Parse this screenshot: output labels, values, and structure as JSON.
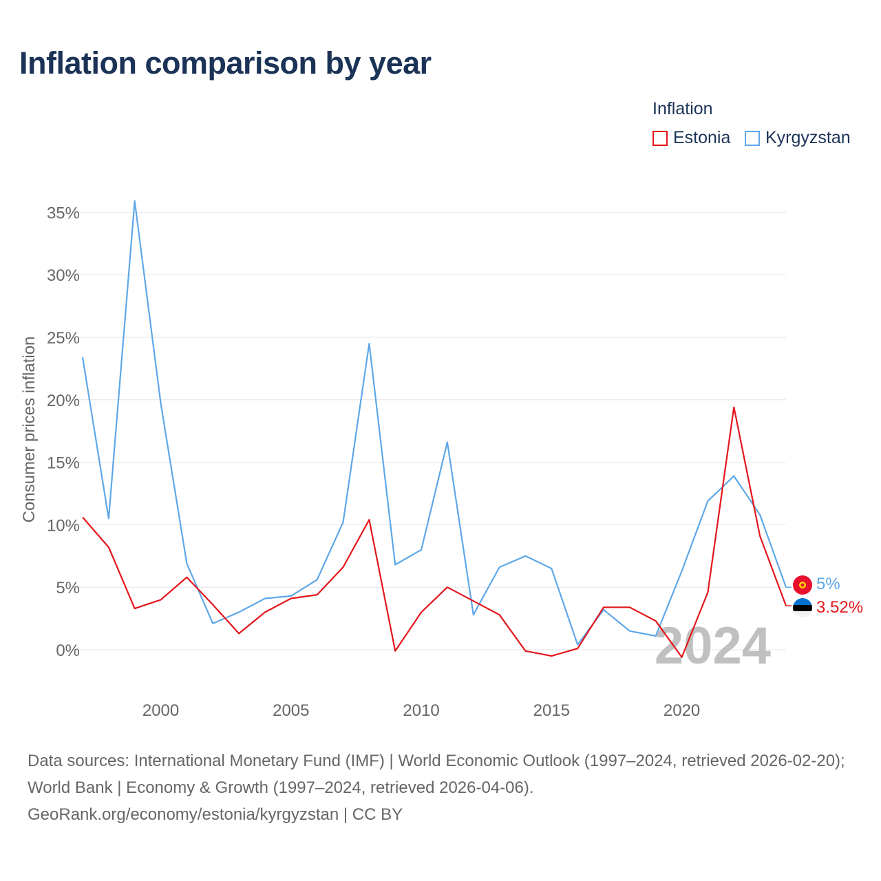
{
  "title": "Inflation comparison by year",
  "legend": {
    "title": "Inflation",
    "items": [
      {
        "label": "Estonia",
        "color": "#e3161b"
      },
      {
        "label": "Kyrgyzstan",
        "color": "#5ea7e8"
      }
    ]
  },
  "chart_data": {
    "type": "line",
    "title": "Inflation comparison by year",
    "xlabel": "",
    "ylabel": "Consumer prices inflation",
    "xlim": [
      1997,
      2024
    ],
    "ylim": [
      -3,
      37
    ],
    "xticks": [
      2000,
      2005,
      2010,
      2015,
      2020
    ],
    "yticks": [
      0,
      5,
      10,
      15,
      20,
      25,
      30,
      35
    ],
    "ytick_labels": [
      "0%",
      "5%",
      "10%",
      "15%",
      "20%",
      "25%",
      "30%",
      "35%"
    ],
    "grid": true,
    "x": [
      1997,
      1998,
      1999,
      2000,
      2001,
      2002,
      2003,
      2004,
      2005,
      2006,
      2007,
      2008,
      2009,
      2010,
      2011,
      2012,
      2013,
      2014,
      2015,
      2016,
      2017,
      2018,
      2019,
      2020,
      2021,
      2022,
      2023,
      2024
    ],
    "series": [
      {
        "name": "Estonia",
        "color": "#e3161b",
        "end_label": "3.52%",
        "values": [
          10.6,
          8.2,
          3.3,
          4.0,
          5.8,
          3.6,
          1.3,
          3.0,
          4.1,
          4.4,
          6.6,
          10.4,
          -0.1,
          3.0,
          5.0,
          3.9,
          2.8,
          -0.1,
          -0.5,
          0.1,
          3.4,
          3.4,
          2.3,
          -0.6,
          4.6,
          19.4,
          9.1,
          3.52
        ]
      },
      {
        "name": "Kyrgyzstan",
        "color": "#5ea7e8",
        "end_label": "5%",
        "values": [
          23.4,
          10.5,
          35.9,
          19.7,
          6.9,
          2.1,
          3.0,
          4.1,
          4.3,
          5.6,
          10.2,
          24.5,
          6.8,
          8.0,
          16.6,
          2.8,
          6.6,
          7.5,
          6.5,
          0.4,
          3.2,
          1.5,
          1.1,
          6.3,
          11.9,
          13.9,
          10.8,
          5.0
        ]
      }
    ],
    "annotation": "2024"
  },
  "footer": {
    "sources": "Data sources: International Monetary Fund (IMF) | World Economic Outlook (1997–2024, retrieved 2026-02-20); World Bank | Economy & Growth (1997–2024, retrieved 2026-04-06).",
    "credit": "GeoRank.org/economy/estonia/kyrgyzstan | CC BY"
  }
}
